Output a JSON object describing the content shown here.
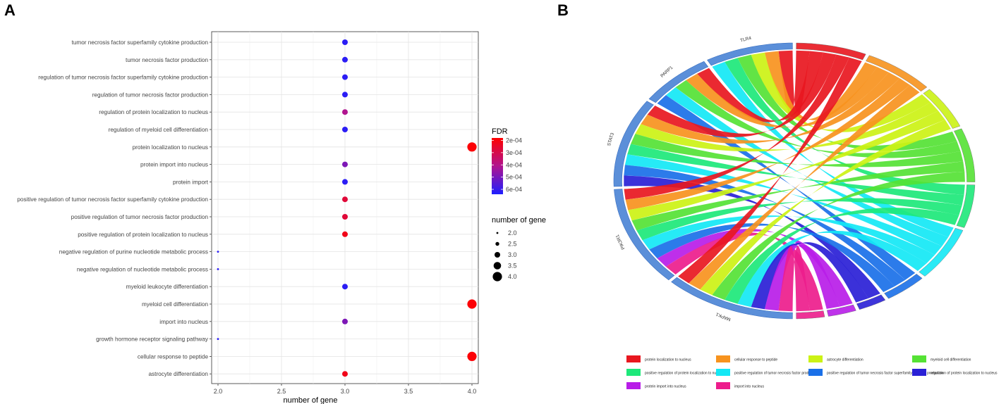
{
  "panel_a": {
    "letter": "A",
    "chart_data": {
      "type": "scatter",
      "xlabel": "number of gene",
      "xlim": [
        1.95,
        4.05
      ],
      "xticks": [
        2.0,
        2.5,
        3.0,
        3.5,
        4.0
      ],
      "xtick_labels": [
        "2.0",
        "2.5",
        "3.0",
        "3.5",
        "4.0"
      ],
      "categories": [
        "tumor necrosis factor superfamily cytokine production",
        "tumor necrosis factor production",
        "regulation of tumor necrosis factor superfamily cytokine production",
        "regulation of tumor necrosis factor production",
        "regulation of protein localization to nucleus",
        "regulation of myeloid cell differentiation",
        "protein localization to nucleus",
        "protein import into nucleus",
        "protein import",
        "positive regulation of tumor necrosis factor superfamily cytokine production",
        "positive regulation of tumor necrosis factor production",
        "positive regulation of protein localization to nucleus",
        "negative regulation of purine nucleotide metabolic process",
        "negative regulation of nucleotide metabolic process",
        "myeloid leukocyte differentiation",
        "myeloid cell differentiation",
        "import into nucleus",
        "growth hormone receptor signaling pathway",
        "cellular response to peptide",
        "astrocyte differentiation"
      ],
      "x": [
        3,
        3,
        3,
        3,
        3,
        3,
        4,
        3,
        3,
        3,
        3,
        3,
        2,
        2,
        3,
        4,
        3,
        2,
        4,
        3
      ],
      "fdr": [
        0.00062,
        0.00062,
        0.00062,
        0.00062,
        0.00041,
        0.00062,
        0.00019,
        0.00049,
        0.00062,
        0.00027,
        0.00027,
        0.00022,
        0.00062,
        0.00062,
        0.00062,
        0.00019,
        0.00049,
        0.00062,
        0.00019,
        0.00022
      ],
      "color_legend": {
        "title": "FDR",
        "ticks": [
          0.0002,
          0.0003,
          0.0004,
          0.0005,
          0.0006
        ],
        "labels": [
          "2e-04",
          "3e-04",
          "4e-04",
          "5e-04",
          "6e-04"
        ],
        "range": [
          0.00018,
          0.00064
        ],
        "low_color": "#ff0000",
        "high_color": "#1e1eff"
      },
      "size_legend": {
        "title": "number of gene",
        "values": [
          2.0,
          2.5,
          3.0,
          3.5,
          4.0
        ],
        "labels": [
          "2.0",
          "2.5",
          "3.0",
          "3.5",
          "4.0"
        ]
      }
    }
  },
  "panel_b": {
    "letter": "B",
    "chart_data": {
      "type": "chord",
      "genes": [
        "TLR4",
        "PARP1",
        "STAT3",
        "PIK3R1",
        "MAPK1"
      ],
      "gene_color": "#5b8fd9",
      "terms": [
        {
          "label": "protein localization to nucleus",
          "color": "#e8171f"
        },
        {
          "label": "cellular response to peptide",
          "color": "#f7931e"
        },
        {
          "label": "astrocyte differentiation",
          "color": "#ccf215"
        },
        {
          "label": "myeloid cell differentiation",
          "color": "#55e235"
        },
        {
          "label": "positive regulation of protein localization to nucleus",
          "color": "#1de87a"
        },
        {
          "label": "positive regulation of tumor necrosis factor production",
          "color": "#14e8f5"
        },
        {
          "label": "positive regulation of tumor necrosis factor superfamily cytokine production",
          "color": "#1a70e8"
        },
        {
          "label": "regulation of protein localization to nucleus",
          "color": "#2a20d6"
        },
        {
          "label": "protein import into nucleus",
          "color": "#b81de8"
        },
        {
          "label": "import into nucleus",
          "color": "#ed1d8c"
        }
      ],
      "links": [
        {
          "gene": "TLR4",
          "term": 0
        },
        {
          "gene": "TLR4",
          "term": 1
        },
        {
          "gene": "TLR4",
          "term": 2
        },
        {
          "gene": "TLR4",
          "term": 3
        },
        {
          "gene": "TLR4",
          "term": 4
        },
        {
          "gene": "TLR4",
          "term": 5
        },
        {
          "gene": "PARP1",
          "term": 0
        },
        {
          "gene": "PARP1",
          "term": 1
        },
        {
          "gene": "PARP1",
          "term": 3
        },
        {
          "gene": "PARP1",
          "term": 5
        },
        {
          "gene": "PARP1",
          "term": 6
        },
        {
          "gene": "STAT3",
          "term": 0
        },
        {
          "gene": "STAT3",
          "term": 1
        },
        {
          "gene": "STAT3",
          "term": 2
        },
        {
          "gene": "STAT3",
          "term": 3
        },
        {
          "gene": "STAT3",
          "term": 4
        },
        {
          "gene": "STAT3",
          "term": 5
        },
        {
          "gene": "STAT3",
          "term": 6
        },
        {
          "gene": "STAT3",
          "term": 7
        },
        {
          "gene": "PIK3R1",
          "term": 0
        },
        {
          "gene": "PIK3R1",
          "term": 1
        },
        {
          "gene": "PIK3R1",
          "term": 2
        },
        {
          "gene": "PIK3R1",
          "term": 3
        },
        {
          "gene": "PIK3R1",
          "term": 4
        },
        {
          "gene": "PIK3R1",
          "term": 5
        },
        {
          "gene": "PIK3R1",
          "term": 6
        },
        {
          "gene": "PIK3R1",
          "term": 8
        },
        {
          "gene": "PIK3R1",
          "term": 9
        },
        {
          "gene": "MAPK1",
          "term": 0
        },
        {
          "gene": "MAPK1",
          "term": 1
        },
        {
          "gene": "MAPK1",
          "term": 2
        },
        {
          "gene": "MAPK1",
          "term": 3
        },
        {
          "gene": "MAPK1",
          "term": 4
        },
        {
          "gene": "MAPK1",
          "term": 5
        },
        {
          "gene": "MAPK1",
          "term": 7
        },
        {
          "gene": "MAPK1",
          "term": 8
        },
        {
          "gene": "MAPK1",
          "term": 9
        }
      ]
    }
  }
}
